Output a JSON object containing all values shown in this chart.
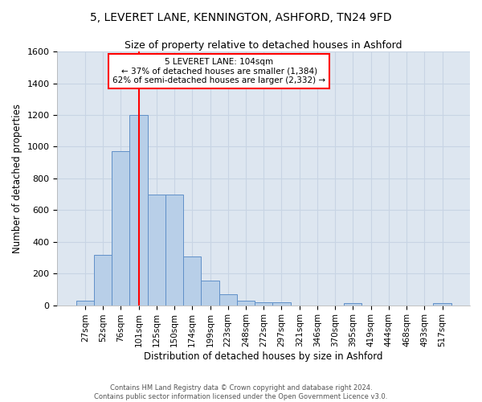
{
  "title_line1": "5, LEVERET LANE, KENNINGTON, ASHFORD, TN24 9FD",
  "title_line2": "Size of property relative to detached houses in Ashford",
  "xlabel": "Distribution of detached houses by size in Ashford",
  "ylabel": "Number of detached properties",
  "footer_line1": "Contains HM Land Registry data © Crown copyright and database right 2024.",
  "footer_line2": "Contains public sector information licensed under the Open Government Licence v3.0.",
  "annotation_line1": "5 LEVERET LANE: 104sqm",
  "annotation_line2": "← 37% of detached houses are smaller (1,384)",
  "annotation_line3": "62% of semi-detached houses are larger (2,332) →",
  "bar_color": "#b8cfe8",
  "bar_edge_color": "#6090c8",
  "ref_line_color": "red",
  "grid_color": "#c8d4e4",
  "background_color": "#dde6f0",
  "fig_background_color": "#ffffff",
  "categories": [
    "27sqm",
    "52sqm",
    "76sqm",
    "101sqm",
    "125sqm",
    "150sqm",
    "174sqm",
    "199sqm",
    "223sqm",
    "248sqm",
    "272sqm",
    "297sqm",
    "321sqm",
    "346sqm",
    "370sqm",
    "395sqm",
    "419sqm",
    "444sqm",
    "468sqm",
    "493sqm",
    "517sqm"
  ],
  "values": [
    30,
    320,
    970,
    1200,
    700,
    700,
    305,
    155,
    70,
    30,
    20,
    20,
    0,
    0,
    0,
    15,
    0,
    0,
    0,
    0,
    15
  ],
  "ylim": [
    0,
    1600
  ],
  "yticks": [
    0,
    200,
    400,
    600,
    800,
    1000,
    1200,
    1400,
    1600
  ],
  "ref_bar_index": 3,
  "figsize": [
    6.0,
    5.0
  ],
  "dpi": 100
}
